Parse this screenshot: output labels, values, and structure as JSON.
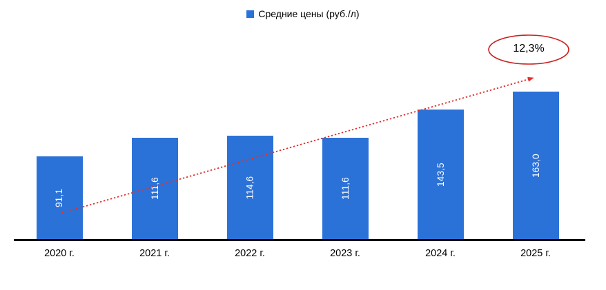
{
  "legend": {
    "label": "Средние цены (руб./л)",
    "marker_color": "#2B72D8"
  },
  "chart_data": {
    "type": "bar",
    "title": "",
    "series_name": "Средние цены (руб./л)",
    "categories": [
      "2020 г.",
      "2021 г.",
      "2022 г.",
      "2023 г.",
      "2024 г.",
      "2025 г."
    ],
    "values": [
      91.1,
      111.6,
      114.6,
      111.6,
      143.5,
      163.0
    ],
    "value_labels": [
      "91,1",
      "111,6",
      "114,6",
      "111,6",
      "143,5",
      "163,0"
    ],
    "unit": "руб./л",
    "ylim": [
      0,
      170
    ],
    "y_axis_visible": false,
    "grid": false,
    "legend_position": "top-center",
    "bar_color": "#2B72D8",
    "value_label_color": "#FFFFFF",
    "axis_color": "#000000",
    "annotation": {
      "text": "12,3%",
      "shape": "ellipse",
      "color": "#C9211E"
    },
    "trendline": {
      "type": "dashed-arrow",
      "color": "#E0302A"
    }
  }
}
